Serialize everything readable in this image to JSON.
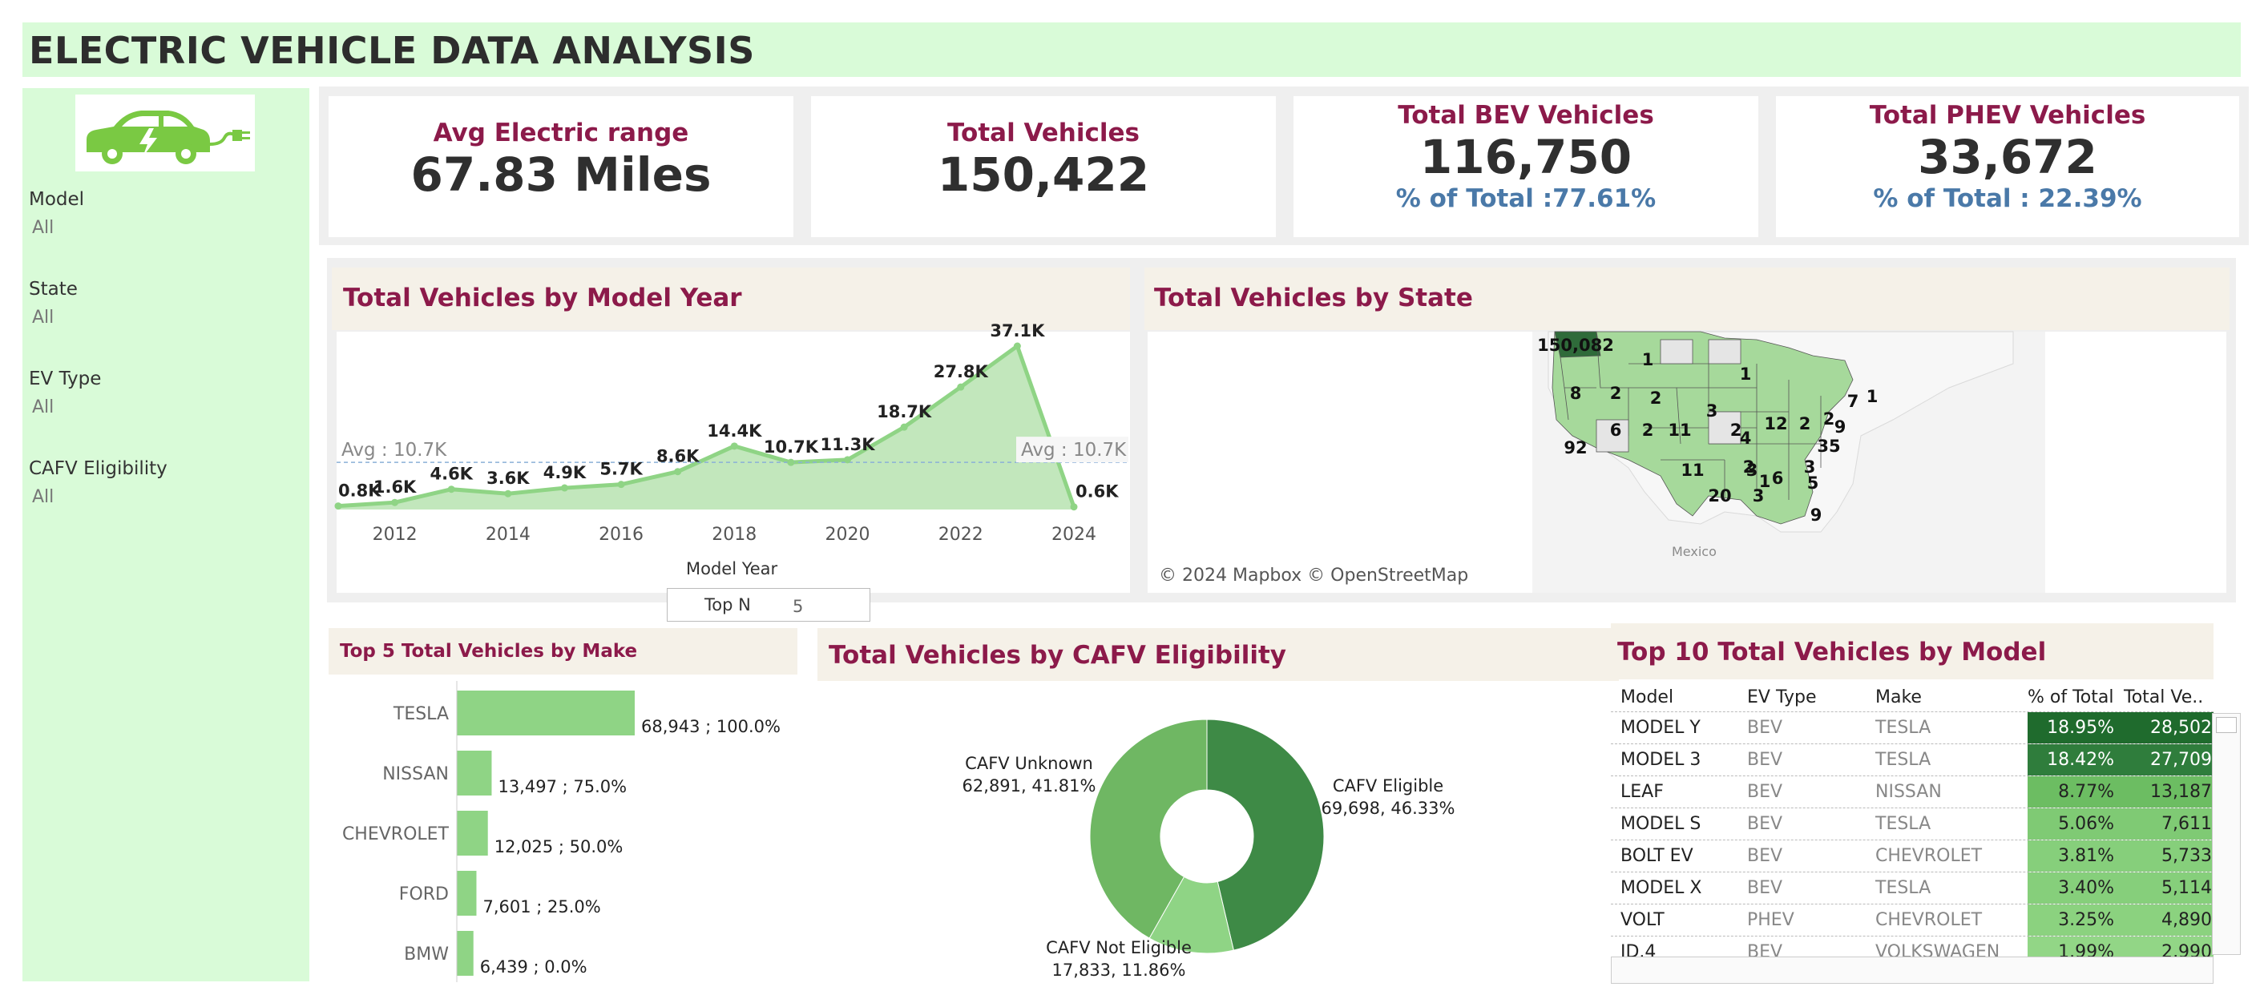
{
  "title": "ELECTRIC VEHICLE DATA ANALYSIS",
  "filters": [
    {
      "label": "Model",
      "value": "All"
    },
    {
      "label": "State",
      "value": "All"
    },
    {
      "label": "EV Type",
      "value": "All"
    },
    {
      "label": "CAFV Eligibility",
      "value": "All"
    }
  ],
  "kpis": {
    "avg_range": {
      "label": "Avg Electric range",
      "value": "67.83 Miles"
    },
    "total": {
      "label": "Total Vehicles",
      "value": "150,422"
    },
    "bev": {
      "label": "Total BEV Vehicles",
      "value": "116,750",
      "pct": "% of Total :77.61%"
    },
    "phev": {
      "label": "Total PHEV Vehicles",
      "value": "33,672",
      "pct": "% of Total : 22.39%"
    }
  },
  "year_panel": {
    "title": "Total Vehicles by Model Year",
    "xlabel": "Model Year",
    "avg_left": "Avg : 10.7K",
    "avg_right": "Avg : 10.7K"
  },
  "state_panel": {
    "title": "Total Vehicles by State",
    "attribution": "© 2024 Mapbox © OpenStreetMap",
    "mexico": "Mexico"
  },
  "topn": {
    "label": "Top N",
    "value": "5"
  },
  "make_panel": {
    "title": "Top 5 Total Vehicles by Make"
  },
  "cafv_panel": {
    "title": "Total Vehicles by CAFV Eligibility"
  },
  "model_panel": {
    "title": "Top 10 Total Vehicles by Model",
    "headers": [
      "Model",
      "EV Type",
      "Make",
      "% of Total",
      "Total Ve.."
    ]
  },
  "colors": {
    "accent_title": "#8c1a4a",
    "kpi_pct": "#4a79a8",
    "green_light": "#8fd485",
    "green_mid": "#6fb763",
    "green_dark": "#3e8a46",
    "sidebar_bg": "#d9fbd8"
  },
  "icons": {
    "logo": "electric-car-plug-icon"
  },
  "chart_data": [
    {
      "type": "area",
      "title": "Total Vehicles by Model Year",
      "xlabel": "Model Year",
      "ylabel": "",
      "x": [
        2011,
        2012,
        2013,
        2014,
        2015,
        2016,
        2017,
        2018,
        2019,
        2020,
        2021,
        2022,
        2023,
        2024
      ],
      "values": [
        800,
        1600,
        4600,
        3600,
        4900,
        5700,
        8600,
        14400,
        10700,
        11300,
        18700,
        27800,
        37100,
        600
      ],
      "labels": [
        "0.8K",
        "1.6K",
        "4.6K",
        "3.6K",
        "4.9K",
        "5.7K",
        "8.6K",
        "14.4K",
        "10.7K",
        "11.3K",
        "18.7K",
        "27.8K",
        "37.1K",
        "0.6K"
      ],
      "x_ticks": [
        "2012",
        "2014",
        "2016",
        "2018",
        "2020",
        "2022",
        "2024"
      ],
      "reference_line": 10700,
      "ylim": [
        0,
        37100
      ],
      "grid": false
    },
    {
      "type": "bar",
      "title": "Top 5 Total Vehicles by Make",
      "orientation": "horizontal",
      "categories": [
        "TESLA",
        "NISSAN",
        "CHEVROLET",
        "FORD",
        "BMW"
      ],
      "values": [
        68943,
        13497,
        12025,
        7601,
        6439
      ],
      "labels": [
        "68,943 ; 100.0%",
        "13,497 ; 75.0%",
        "12,025 ; 50.0%",
        "7,601 ; 25.0%",
        "6,439 ; 0.0%"
      ]
    },
    {
      "type": "pie",
      "title": "Total Vehicles by CAFV Eligibility",
      "donut": true,
      "categories": [
        "CAFV Eligible",
        "CAFV Not Eligible",
        "CAFV Unknown"
      ],
      "values": [
        69698,
        17833,
        62891
      ],
      "labels": [
        [
          "CAFV Eligible",
          "69,698, 46.33%"
        ],
        [
          "CAFV Not Eligible",
          "17,833, 11.86%"
        ],
        [
          "CAFV Unknown",
          "62,891, 41.81%"
        ]
      ],
      "colors": [
        "#3e8a46",
        "#8fd485",
        "#6fb763"
      ]
    },
    {
      "type": "table",
      "title": "Top 10 Total Vehicles by Model",
      "columns": [
        "Model",
        "EV Type",
        "Make",
        "% of Total",
        "Total Ve.."
      ],
      "rows": [
        [
          "MODEL Y",
          "BEV",
          "TESLA",
          "18.95%",
          "28,502"
        ],
        [
          "MODEL 3",
          "BEV",
          "TESLA",
          "18.42%",
          "27,709"
        ],
        [
          "LEAF",
          "BEV",
          "NISSAN",
          "8.77%",
          "13,187"
        ],
        [
          "MODEL S",
          "BEV",
          "TESLA",
          "5.06%",
          "7,611"
        ],
        [
          "BOLT EV",
          "BEV",
          "CHEVROLET",
          "3.81%",
          "5,733"
        ],
        [
          "MODEL X",
          "BEV",
          "TESLA",
          "3.40%",
          "5,114"
        ],
        [
          "VOLT",
          "PHEV",
          "CHEVROLET",
          "3.25%",
          "4,890"
        ],
        [
          "ID.4",
          "BEV",
          "VOLKSWAGEN",
          "1.99%",
          "2,990"
        ]
      ]
    },
    {
      "type": "map",
      "title": "Total Vehicles by State",
      "labels": [
        "150,082",
        "1",
        "8",
        "2",
        "2",
        "1",
        "92",
        "6",
        "2",
        "11",
        "3",
        "2",
        "12",
        "2",
        "2",
        "7",
        "1",
        "9",
        "35",
        "4",
        "3",
        "6",
        "11",
        "20",
        "2",
        "1",
        "3",
        "5",
        "3",
        "9"
      ]
    }
  ]
}
